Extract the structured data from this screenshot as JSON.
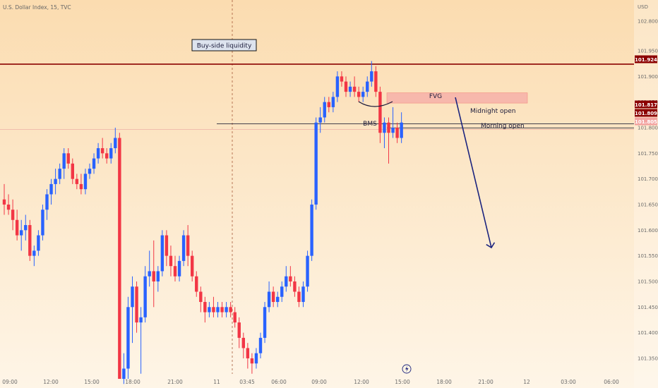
{
  "header": {
    "symbol_line": "U.S. Dollar Index, 15, TVC"
  },
  "colors": {
    "bg_top": "#fbdcb0",
    "bg_bottom": "#fef5e7",
    "bull": "#2962ff",
    "bear": "#f23645",
    "liquidity_line": "#8b0000",
    "fvg_fill": "#f6aaa6",
    "level_line": "#2a2a3a",
    "arrow": "#1a237e",
    "tag_dark": "#8b0000"
  },
  "chart_data": {
    "type": "candlestick",
    "title": "U.S. Dollar Index, 15, TVC",
    "y_axis": {
      "unit": "USD",
      "ylim": [
        101.31,
        102.84
      ],
      "ticks": [
        "102.800",
        "101.950",
        "101.900",
        "101.850",
        "101.800",
        "101.750",
        "101.700",
        "101.650",
        "101.600",
        "101.550",
        "101.500",
        "101.450",
        "101.400",
        "101.350"
      ],
      "price_tags": [
        {
          "value": "101.924",
          "style": "dark"
        },
        {
          "value": "101.817",
          "style": "dark"
        },
        {
          "value": "101.809",
          "style": "dark"
        },
        {
          "value": "101.805",
          "style": "light"
        }
      ]
    },
    "x_axis": {
      "ticks": [
        "09:00",
        "12:00",
        "15:00",
        "18:00",
        "21:00",
        "11",
        "03:45",
        "06:00",
        "09:00",
        "12:00",
        "15:00",
        "18:00",
        "21:00",
        "12",
        "03:00",
        "06:00"
      ]
    },
    "candles": [
      {
        "o": 101.66,
        "h": 101.69,
        "l": 101.63,
        "c": 101.65
      },
      {
        "o": 101.65,
        "h": 101.67,
        "l": 101.63,
        "c": 101.64
      },
      {
        "o": 101.64,
        "h": 101.66,
        "l": 101.6,
        "c": 101.62
      },
      {
        "o": 101.62,
        "h": 101.64,
        "l": 101.58,
        "c": 101.59
      },
      {
        "o": 101.59,
        "h": 101.62,
        "l": 101.56,
        "c": 101.6
      },
      {
        "o": 101.6,
        "h": 101.63,
        "l": 101.58,
        "c": 101.61
      },
      {
        "o": 101.61,
        "h": 101.62,
        "l": 101.54,
        "c": 101.55
      },
      {
        "o": 101.55,
        "h": 101.57,
        "l": 101.53,
        "c": 101.56
      },
      {
        "o": 101.56,
        "h": 101.6,
        "l": 101.55,
        "c": 101.59
      },
      {
        "o": 101.59,
        "h": 101.65,
        "l": 101.58,
        "c": 101.64
      },
      {
        "o": 101.64,
        "h": 101.68,
        "l": 101.62,
        "c": 101.67
      },
      {
        "o": 101.67,
        "h": 101.7,
        "l": 101.65,
        "c": 101.69
      },
      {
        "o": 101.69,
        "h": 101.72,
        "l": 101.67,
        "c": 101.7
      },
      {
        "o": 101.7,
        "h": 101.73,
        "l": 101.69,
        "c": 101.72
      },
      {
        "o": 101.72,
        "h": 101.76,
        "l": 101.7,
        "c": 101.75
      },
      {
        "o": 101.75,
        "h": 101.76,
        "l": 101.72,
        "c": 101.73
      },
      {
        "o": 101.73,
        "h": 101.74,
        "l": 101.69,
        "c": 101.7
      },
      {
        "o": 101.7,
        "h": 101.71,
        "l": 101.68,
        "c": 101.69
      },
      {
        "o": 101.69,
        "h": 101.71,
        "l": 101.67,
        "c": 101.68
      },
      {
        "o": 101.68,
        "h": 101.72,
        "l": 101.67,
        "c": 101.71
      },
      {
        "o": 101.71,
        "h": 101.73,
        "l": 101.7,
        "c": 101.72
      },
      {
        "o": 101.72,
        "h": 101.75,
        "l": 101.71,
        "c": 101.74
      },
      {
        "o": 101.74,
        "h": 101.77,
        "l": 101.73,
        "c": 101.76
      },
      {
        "o": 101.76,
        "h": 101.78,
        "l": 101.74,
        "c": 101.75
      },
      {
        "o": 101.75,
        "h": 101.76,
        "l": 101.73,
        "c": 101.74
      },
      {
        "o": 101.74,
        "h": 101.77,
        "l": 101.73,
        "c": 101.76
      },
      {
        "o": 101.76,
        "h": 101.8,
        "l": 101.75,
        "c": 101.78
      },
      {
        "o": 101.78,
        "h": 101.79,
        "l": 101.31,
        "c": 101.31
      },
      {
        "o": 101.31,
        "h": 101.36,
        "l": 101.3,
        "c": 101.33
      },
      {
        "o": 101.33,
        "h": 101.47,
        "l": 101.31,
        "c": 101.45
      },
      {
        "o": 101.45,
        "h": 101.51,
        "l": 101.38,
        "c": 101.49
      },
      {
        "o": 101.49,
        "h": 101.5,
        "l": 101.4,
        "c": 101.42
      },
      {
        "o": 101.42,
        "h": 101.45,
        "l": 101.32,
        "c": 101.43
      },
      {
        "o": 101.43,
        "h": 101.53,
        "l": 101.42,
        "c": 101.51
      },
      {
        "o": 101.51,
        "h": 101.56,
        "l": 101.49,
        "c": 101.52
      },
      {
        "o": 101.52,
        "h": 101.58,
        "l": 101.45,
        "c": 101.5
      },
      {
        "o": 101.5,
        "h": 101.53,
        "l": 101.48,
        "c": 101.52
      },
      {
        "o": 101.52,
        "h": 101.6,
        "l": 101.51,
        "c": 101.59
      },
      {
        "o": 101.59,
        "h": 101.6,
        "l": 101.53,
        "c": 101.55
      },
      {
        "o": 101.55,
        "h": 101.57,
        "l": 101.51,
        "c": 101.53
      },
      {
        "o": 101.53,
        "h": 101.55,
        "l": 101.5,
        "c": 101.51
      },
      {
        "o": 101.51,
        "h": 101.55,
        "l": 101.5,
        "c": 101.54
      },
      {
        "o": 101.54,
        "h": 101.6,
        "l": 101.53,
        "c": 101.59
      },
      {
        "o": 101.59,
        "h": 101.61,
        "l": 101.53,
        "c": 101.55
      },
      {
        "o": 101.55,
        "h": 101.56,
        "l": 101.5,
        "c": 101.51
      },
      {
        "o": 101.51,
        "h": 101.52,
        "l": 101.47,
        "c": 101.48
      },
      {
        "o": 101.48,
        "h": 101.49,
        "l": 101.44,
        "c": 101.46
      },
      {
        "o": 101.46,
        "h": 101.47,
        "l": 101.42,
        "c": 101.44
      },
      {
        "o": 101.44,
        "h": 101.46,
        "l": 101.43,
        "c": 101.45
      },
      {
        "o": 101.45,
        "h": 101.47,
        "l": 101.43,
        "c": 101.44
      },
      {
        "o": 101.44,
        "h": 101.46,
        "l": 101.43,
        "c": 101.45
      },
      {
        "o": 101.45,
        "h": 101.46,
        "l": 101.43,
        "c": 101.44
      },
      {
        "o": 101.44,
        "h": 101.46,
        "l": 101.43,
        "c": 101.45
      },
      {
        "o": 101.45,
        "h": 101.46,
        "l": 101.43,
        "c": 101.44
      },
      {
        "o": 101.44,
        "h": 101.45,
        "l": 101.41,
        "c": 101.42
      },
      {
        "o": 101.42,
        "h": 101.43,
        "l": 101.37,
        "c": 101.39
      },
      {
        "o": 101.39,
        "h": 101.4,
        "l": 101.35,
        "c": 101.37
      },
      {
        "o": 101.37,
        "h": 101.38,
        "l": 101.33,
        "c": 101.35
      },
      {
        "o": 101.35,
        "h": 101.36,
        "l": 101.32,
        "c": 101.34
      },
      {
        "o": 101.34,
        "h": 101.37,
        "l": 101.33,
        "c": 101.36
      },
      {
        "o": 101.36,
        "h": 101.4,
        "l": 101.35,
        "c": 101.39
      },
      {
        "o": 101.39,
        "h": 101.46,
        "l": 101.38,
        "c": 101.45
      },
      {
        "o": 101.45,
        "h": 101.5,
        "l": 101.44,
        "c": 101.48
      },
      {
        "o": 101.48,
        "h": 101.49,
        "l": 101.45,
        "c": 101.46
      },
      {
        "o": 101.46,
        "h": 101.48,
        "l": 101.45,
        "c": 101.47
      },
      {
        "o": 101.47,
        "h": 101.5,
        "l": 101.46,
        "c": 101.49
      },
      {
        "o": 101.49,
        "h": 101.53,
        "l": 101.48,
        "c": 101.51
      },
      {
        "o": 101.51,
        "h": 101.53,
        "l": 101.49,
        "c": 101.5
      },
      {
        "o": 101.5,
        "h": 101.51,
        "l": 101.47,
        "c": 101.48
      },
      {
        "o": 101.48,
        "h": 101.49,
        "l": 101.45,
        "c": 101.46
      },
      {
        "o": 101.46,
        "h": 101.5,
        "l": 101.45,
        "c": 101.49
      },
      {
        "o": 101.49,
        "h": 101.56,
        "l": 101.48,
        "c": 101.55
      },
      {
        "o": 101.55,
        "h": 101.66,
        "l": 101.54,
        "c": 101.65
      },
      {
        "o": 101.65,
        "h": 101.82,
        "l": 101.64,
        "c": 101.81
      },
      {
        "o": 101.81,
        "h": 101.84,
        "l": 101.79,
        "c": 101.82
      },
      {
        "o": 101.82,
        "h": 101.86,
        "l": 101.81,
        "c": 101.85
      },
      {
        "o": 101.85,
        "h": 101.86,
        "l": 101.83,
        "c": 101.84
      },
      {
        "o": 101.84,
        "h": 101.87,
        "l": 101.83,
        "c": 101.86
      },
      {
        "o": 101.86,
        "h": 101.91,
        "l": 101.85,
        "c": 101.9
      },
      {
        "o": 101.9,
        "h": 101.91,
        "l": 101.88,
        "c": 101.89
      },
      {
        "o": 101.89,
        "h": 101.9,
        "l": 101.86,
        "c": 101.87
      },
      {
        "o": 101.87,
        "h": 101.89,
        "l": 101.86,
        "c": 101.88
      },
      {
        "o": 101.88,
        "h": 101.9,
        "l": 101.86,
        "c": 101.87
      },
      {
        "o": 101.87,
        "h": 101.88,
        "l": 101.85,
        "c": 101.86
      },
      {
        "o": 101.86,
        "h": 101.88,
        "l": 101.85,
        "c": 101.87
      },
      {
        "o": 101.87,
        "h": 101.9,
        "l": 101.86,
        "c": 101.89
      },
      {
        "o": 101.89,
        "h": 101.93,
        "l": 101.88,
        "c": 101.91
      },
      {
        "o": 101.91,
        "h": 101.92,
        "l": 101.86,
        "c": 101.87
      },
      {
        "o": 101.87,
        "h": 101.88,
        "l": 101.77,
        "c": 101.79
      },
      {
        "o": 101.79,
        "h": 101.82,
        "l": 101.76,
        "c": 101.81
      },
      {
        "o": 101.81,
        "h": 101.82,
        "l": 101.73,
        "c": 101.79
      },
      {
        "o": 101.79,
        "h": 101.84,
        "l": 101.78,
        "c": 101.8
      },
      {
        "o": 101.8,
        "h": 101.81,
        "l": 101.77,
        "c": 101.78
      },
      {
        "o": 101.78,
        "h": 101.83,
        "l": 101.77,
        "c": 101.81
      }
    ],
    "annotations": {
      "buy_side_liquidity": {
        "label": "Buy-side liquidity",
        "level": 101.924
      },
      "fvg": {
        "label": "FVG",
        "low": 101.848,
        "high": 101.868
      },
      "midnight_open": {
        "label": "Midnight open",
        "level": 101.809
      },
      "morning_open": {
        "label": "Morning open",
        "level": 101.805
      },
      "bms": {
        "label": "BMS"
      }
    }
  }
}
